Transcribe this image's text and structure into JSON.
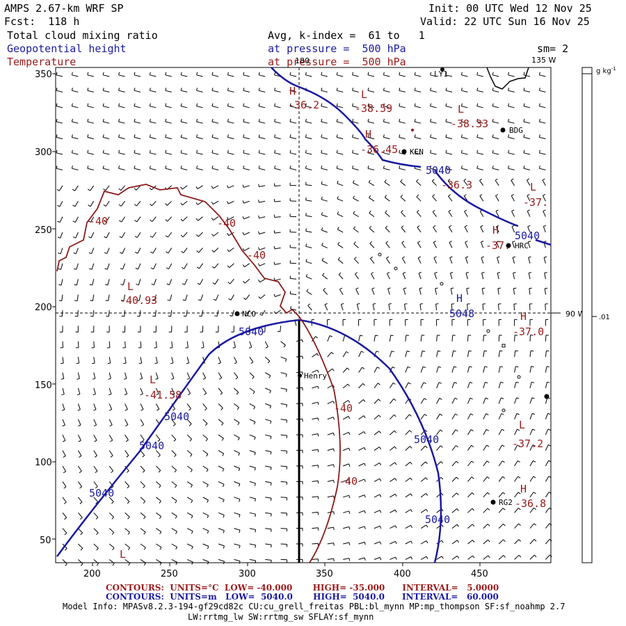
{
  "header": {
    "model": "AMPS 2.67-km WRF SP",
    "forecast": "Fcst:  118 h",
    "field1": "Total cloud mixing ratio",
    "field2": "Geopotential height",
    "field3": "Temperature",
    "avg": "Avg, k-index =  61 to   1",
    "pressure1": "at pressure =  500 hPa",
    "pressure2": "at pressure =  500 hPa",
    "init": "Init: 00 UTC Wed 12 Nov 25",
    "valid": "Valid: 22 UTC Sun 16 Nov 25",
    "smooth": "sm= 2"
  },
  "map": {
    "x_ticks": [
      "200",
      "250",
      "300",
      "350",
      "400",
      "450"
    ],
    "y_ticks": [
      "350",
      "300",
      "250",
      "200",
      "150",
      "100",
      "50"
    ],
    "lon_labels": [
      "180",
      "135 W",
      "90 W"
    ],
    "stations": [
      "LY1",
      "BDG",
      "KEN",
      "HRC",
      "NCO",
      "Henry",
      "RG2"
    ],
    "height_labels": [
      "5040",
      "5040",
      "5040",
      "5040",
      "5040",
      "5040",
      "5040",
      "5040"
    ],
    "temp_labels": [
      "-40",
      "-40",
      "-40",
      "-40",
      "-40"
    ],
    "hl_markers": [
      {
        "mark": "H",
        "value": "-36.2"
      },
      {
        "mark": "L",
        "value": "-38.59"
      },
      {
        "mark": "L",
        "value": "-38.33"
      },
      {
        "mark": "H",
        "value": "-36.45"
      },
      {
        "mark": "",
        "value": "-36.3"
      },
      {
        "mark": "L",
        "value": "-37."
      },
      {
        "mark": "H",
        "value": "-37."
      },
      {
        "mark": "L",
        "value": "-40.93"
      },
      {
        "mark": "H",
        "value": "5048"
      },
      {
        "mark": "H",
        "value": "-37.0"
      },
      {
        "mark": "L",
        "value": "-41.58"
      },
      {
        "mark": "L",
        "value": "-37.2"
      },
      {
        "mark": "H",
        "value": "-36.8"
      },
      {
        "mark": "L",
        "value": ""
      }
    ]
  },
  "colorbar": {
    "units": "g kg",
    "units_exp": "-1",
    "value": ".01"
  },
  "footer": {
    "line1": "CONTOURS:  UNITS=°C  LOW= -40.000       HIGH= -35.000      INTERVAL=   5.0000",
    "line2": "CONTOURS:  UNITS=m   LOW=  5040.0       HIGH=  5040.0      INTERVAL=   60.000",
    "model_info": "Model Info: MPASv8.2.3-194-gf29cd82c CU:cu_grell_freitas PBL:bl_mynn MP:mp_thompson SF:sf_noahmp 2.7",
    "schemes": "LW:rrtmg_lw SW:rrtmg_sw SFLAY:sf_mynn"
  },
  "colors": {
    "height": "#1a1aa0",
    "temperature": "#9a1a1a",
    "ink": "#000000"
  }
}
